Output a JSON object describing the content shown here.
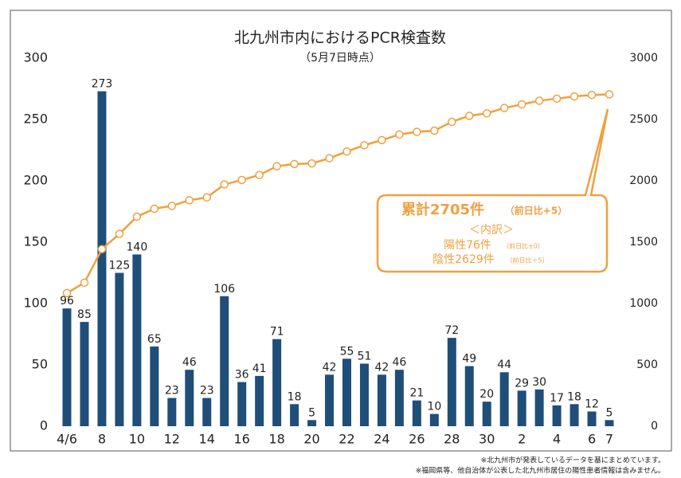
{
  "chart_data": {
    "type": "bar",
    "title": "北九州市内におけるPCR検査数",
    "subtitle": "（5月7日時点）",
    "categories": [
      "4/6",
      null,
      "8",
      null,
      "10",
      null,
      "12",
      null,
      "14",
      null,
      "16",
      null,
      "18",
      null,
      "20",
      null,
      "22",
      null,
      "24",
      null,
      "26",
      null,
      "28",
      null,
      "30",
      null,
      "2",
      null,
      "4",
      null,
      "6",
      "7"
    ],
    "series": [
      {
        "type": "bar",
        "color": "#1f4e79",
        "values": [
          96,
          85,
          273,
          125,
          140,
          65,
          23,
          46,
          23,
          106,
          36,
          41,
          71,
          18,
          5,
          42,
          55,
          51,
          42,
          46,
          21,
          10,
          72,
          49,
          20,
          44,
          29,
          30,
          17,
          18,
          12,
          5
        ]
      },
      {
        "type": "line",
        "axis": "y2",
        "color": "#f0a040",
        "values": [
          1085,
          1170,
          1443,
          1568,
          1708,
          1773,
          1796,
          1842,
          1865,
          1971,
          2007,
          2048,
          2119,
          2137,
          2142,
          2184,
          2239,
          2290,
          2332,
          2378,
          2399,
          2409,
          2481,
          2530,
          2550,
          2594,
          2623,
          2653,
          2670,
          2688,
          2700,
          2705
        ]
      }
    ],
    "ylim": [
      0,
      300
    ],
    "yticks": [
      0,
      50,
      100,
      150,
      200,
      250,
      300
    ],
    "y2lim": [
      0,
      3000
    ],
    "y2ticks": [
      0,
      500,
      1000,
      1500,
      2000,
      2500,
      3000
    ],
    "grid": false,
    "annotation": {
      "total": "累計2705件",
      "total_change": "（前日比+5）",
      "breakdown": "＜内訳＞",
      "positive": "陽性76件",
      "positive_change": "（前日比±0）",
      "negative": "陰性2629件",
      "negative_change": "（前日比＋5）"
    },
    "footnotes": [
      "※北九州市が発表しているデータを基にまとめています。",
      "※福岡県等、他自治体が公表した北九州市居住の陽性患者情報は含みません。"
    ]
  }
}
